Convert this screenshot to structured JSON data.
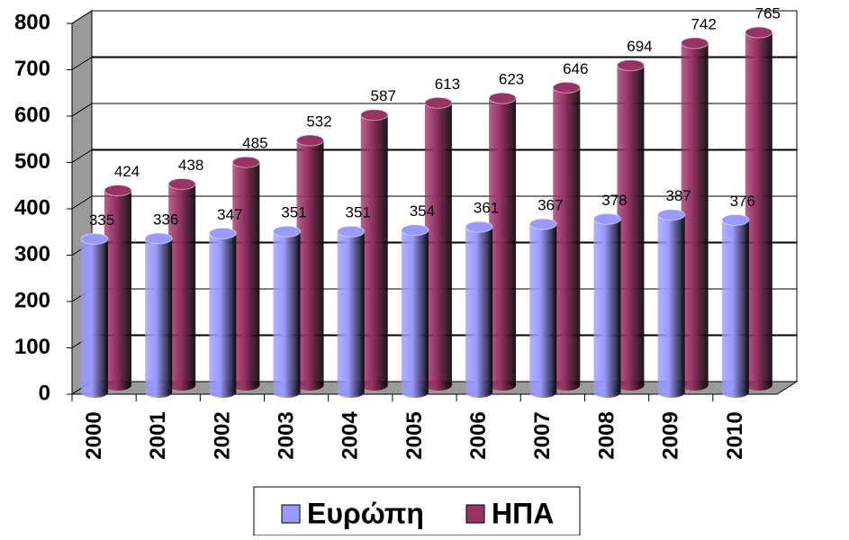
{
  "chart_data": {
    "type": "bar3d",
    "categories": [
      "2000",
      "2001",
      "2002",
      "2003",
      "2004",
      "2005",
      "2006",
      "2007",
      "2008",
      "2009",
      "2010"
    ],
    "series": [
      {
        "name": "Ευρώπη",
        "color": "#9999ff",
        "values": [
          335,
          336,
          347,
          351,
          351,
          354,
          361,
          367,
          378,
          387,
          376
        ]
      },
      {
        "name": "ΗΠΑ",
        "color": "#993366",
        "values": [
          424,
          438,
          485,
          532,
          587,
          613,
          623,
          646,
          694,
          742,
          765
        ]
      }
    ],
    "ylim": [
      0,
      800
    ],
    "yticks": [
      0,
      100,
      200,
      300,
      400,
      500,
      600,
      700,
      800
    ],
    "grid": true,
    "legend": "bottom"
  }
}
